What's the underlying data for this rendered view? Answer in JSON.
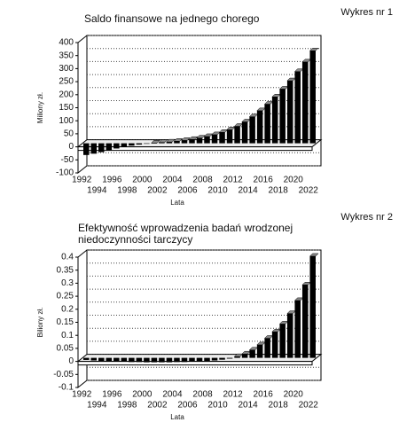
{
  "chart_data": [
    {
      "type": "bar",
      "label": "Wykres nr 1",
      "title": [
        "Saldo finansowe na jednego chorego"
      ],
      "ylabel": "Miliony zł.",
      "xlabel": "Lata",
      "color": "#000000",
      "grid": true,
      "categories": [
        "1992",
        null,
        "1994",
        null,
        "1996",
        null,
        "1998",
        null,
        "2000",
        null,
        "2002",
        null,
        "2004",
        null,
        "2006",
        null,
        "2008",
        null,
        "2010",
        null,
        "2012",
        null,
        "2014",
        null,
        "2016",
        null,
        "2018",
        null,
        "2020",
        null,
        "2022"
      ],
      "values": [
        -45,
        -40,
        -34,
        -27,
        -20,
        -14,
        -9,
        -5,
        -2,
        1,
        3,
        5,
        8,
        11,
        15,
        20,
        26,
        33,
        42,
        52,
        65,
        82,
        102,
        125,
        150,
        178,
        208,
        240,
        275,
        312,
        355
      ],
      "ylim": [
        -100,
        400
      ],
      "yticks": [
        -100,
        -50,
        0,
        50,
        100,
        150,
        200,
        250,
        300,
        350,
        400
      ]
    },
    {
      "type": "bar",
      "label": "Wykres nr 2",
      "title": [
        "Efektywność wprowadzenia badań wrodzonej",
        "niedoczynności tarczycy"
      ],
      "ylabel": "Biliony zł.",
      "xlabel": "Lata",
      "color": "#000000",
      "grid": true,
      "categories": [
        "1992",
        null,
        "1994",
        null,
        "1996",
        null,
        "1998",
        null,
        "2000",
        null,
        "2002",
        null,
        "2004",
        null,
        "2006",
        null,
        "2008",
        null,
        "2010",
        null,
        "2012",
        null,
        "2014",
        null,
        "2016",
        null,
        "2018",
        null,
        "2020",
        null,
        "2022"
      ],
      "values": [
        -0.008,
        -0.01,
        -0.012,
        -0.013,
        -0.014,
        -0.015,
        -0.016,
        -0.016,
        -0.017,
        -0.017,
        -0.017,
        -0.017,
        -0.016,
        -0.016,
        -0.015,
        -0.014,
        -0.012,
        -0.01,
        -0.007,
        -0.003,
        0.005,
        0.015,
        0.03,
        0.05,
        0.075,
        0.1,
        0.13,
        0.17,
        0.22,
        0.28,
        0.39
      ],
      "ylim": [
        -0.1,
        0.4
      ],
      "yticks": [
        -0.1,
        -0.05,
        0,
        0.05,
        0.1,
        0.15,
        0.2,
        0.25,
        0.3,
        0.35,
        0.4
      ]
    }
  ]
}
